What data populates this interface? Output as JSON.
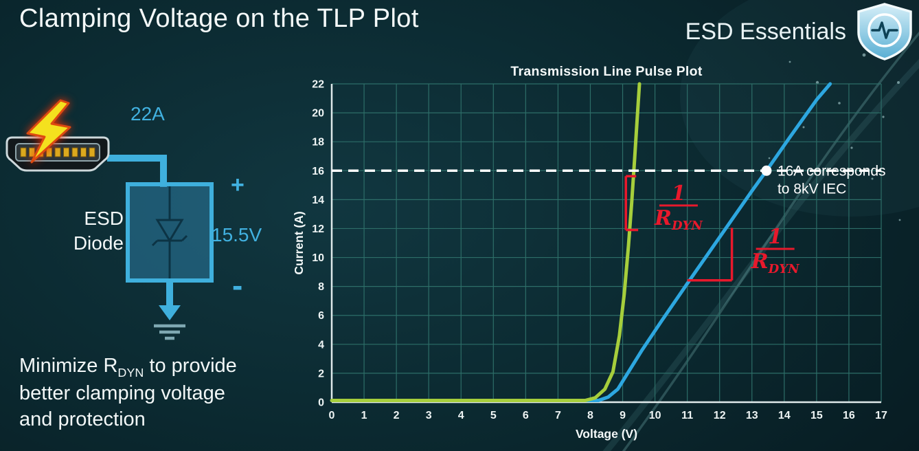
{
  "slide": {
    "title": "Clamping Voltage on the TLP Plot",
    "brand": "ESD Essentials"
  },
  "note": {
    "line1_pre": "Minimize R",
    "line1_sub": "DYN",
    "line1_post": " to provide",
    "line2": "better clamping voltage",
    "line3": "and protection"
  },
  "circuit": {
    "surge_current": "22A",
    "clamp_voltage": "15.5V",
    "polarity_plus": "+",
    "polarity_minus": "-",
    "component_line1": "ESD",
    "component_line2": "Diode"
  },
  "icons": {
    "brand_icon": "shield-with-pulse",
    "surge_icon": "lightning-bolt",
    "connector_icon": "hdmi-connector",
    "diode_symbol": "zener-diode",
    "ground_icon": "down-arrow-to-ground"
  },
  "colors": {
    "accent_cyan": "#41b1e0",
    "curve_green": "#a6ce3c",
    "curve_blue": "#2da7e0",
    "annotation_red": "#e8192c",
    "grid_teal": "#2d6e68",
    "text_white": "#f2f7f7"
  },
  "chart_data": {
    "type": "line",
    "title": "Transmission Line Pulse Plot",
    "xlabel": "Voltage (V)",
    "ylabel": "Current (A)",
    "xlim": [
      0,
      17
    ],
    "ylim": [
      0,
      22
    ],
    "x_ticks": [
      0,
      1,
      2,
      3,
      4,
      5,
      6,
      7,
      8,
      9,
      10,
      11,
      12,
      13,
      14,
      15,
      16,
      17
    ],
    "y_ticks": [
      0,
      2,
      4,
      6,
      8,
      10,
      12,
      14,
      16,
      18,
      20,
      22
    ],
    "grid": true,
    "legend": "none",
    "series": [
      {
        "id": "blue-higher-rdyn",
        "color": "#2da7e0",
        "points": [
          [
            0,
            0.12
          ],
          [
            8.25,
            0.12
          ],
          [
            8.55,
            0.35
          ],
          [
            8.85,
            0.9
          ],
          [
            9.1,
            1.8
          ],
          [
            9.6,
            3.6
          ],
          [
            10.2,
            5.6
          ],
          [
            11,
            8.2
          ],
          [
            12,
            11.4
          ],
          [
            13,
            14.6
          ],
          [
            13.45,
            16
          ],
          [
            14.2,
            18.4
          ],
          [
            15,
            20.9
          ],
          [
            15.42,
            22
          ]
        ]
      },
      {
        "id": "green-lower-rdyn",
        "color": "#a6ce3c",
        "points": [
          [
            0,
            0.12
          ],
          [
            7.85,
            0.12
          ],
          [
            8.15,
            0.3
          ],
          [
            8.45,
            0.9
          ],
          [
            8.7,
            2.1
          ],
          [
            8.9,
            4.6
          ],
          [
            9.05,
            7.5
          ],
          [
            9.18,
            10.8
          ],
          [
            9.28,
            13.8
          ],
          [
            9.37,
            16.8
          ],
          [
            9.45,
            19.6
          ],
          [
            9.52,
            22
          ]
        ]
      }
    ],
    "reference_line": {
      "y": 16,
      "style": "dashed",
      "color": "#ffffff"
    },
    "marker": {
      "x": 13.45,
      "y": 16,
      "label_line1": "16A corresponds",
      "label_line2": "to 8kV IEC"
    },
    "slope_annotations": [
      {
        "color": "#e8192c",
        "segments": [
          [
            9.1,
            15.62,
            9.42,
            15.62
          ],
          [
            9.1,
            15.62,
            9.1,
            11.9
          ],
          [
            9.1,
            11.9,
            9.48,
            11.9
          ]
        ],
        "fraction": {
          "x": 10.73,
          "y": 13.55,
          "numerator": "1",
          "denominator_base": "R",
          "denominator_sub": "DYN"
        }
      },
      {
        "color": "#e8192c",
        "segments": [
          [
            11.0,
            8.42,
            12.38,
            8.42
          ],
          [
            12.38,
            8.42,
            12.38,
            12.05
          ]
        ],
        "fraction": {
          "x": 13.72,
          "y": 10.55,
          "numerator": "1",
          "denominator_base": "R",
          "denominator_sub": "DYN"
        }
      }
    ]
  }
}
